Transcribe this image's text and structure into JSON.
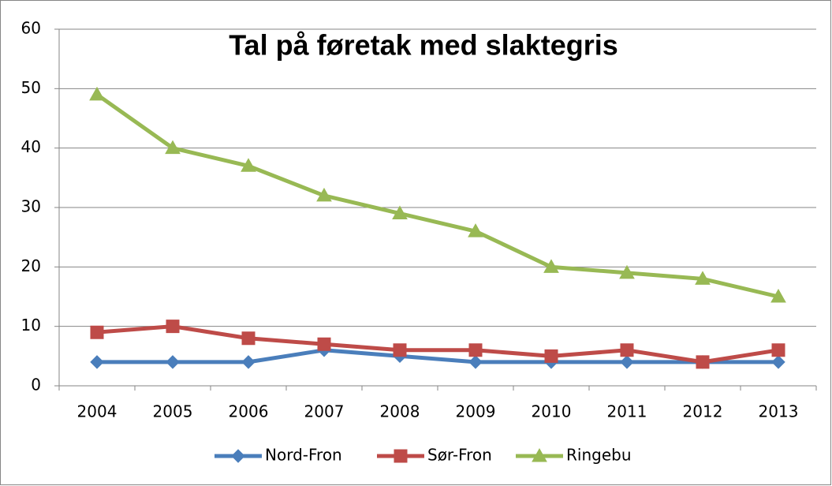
{
  "chart_data": {
    "type": "line",
    "title": "Tal på føretak med slaktegris",
    "categories": [
      "2004",
      "2005",
      "2006",
      "2007",
      "2008",
      "2009",
      "2010",
      "2011",
      "2012",
      "2013"
    ],
    "series": [
      {
        "name": "Nord-Fron",
        "color": "#4a7ebb",
        "marker": "diamond",
        "values": [
          4,
          4,
          4,
          6,
          5,
          4,
          4,
          4,
          4,
          4
        ]
      },
      {
        "name": "Sør-Fron",
        "color": "#be4b48",
        "marker": "square",
        "values": [
          9,
          10,
          8,
          7,
          6,
          6,
          5,
          6,
          4,
          6
        ]
      },
      {
        "name": "Ringebu",
        "color": "#98b954",
        "marker": "triangle",
        "values": [
          49,
          40,
          37,
          32,
          29,
          26,
          20,
          19,
          18,
          15
        ]
      }
    ],
    "ylim": [
      0,
      60
    ],
    "yticks": [
      0,
      10,
      20,
      30,
      40,
      50,
      60
    ],
    "grid": true,
    "legend": "bottom"
  }
}
